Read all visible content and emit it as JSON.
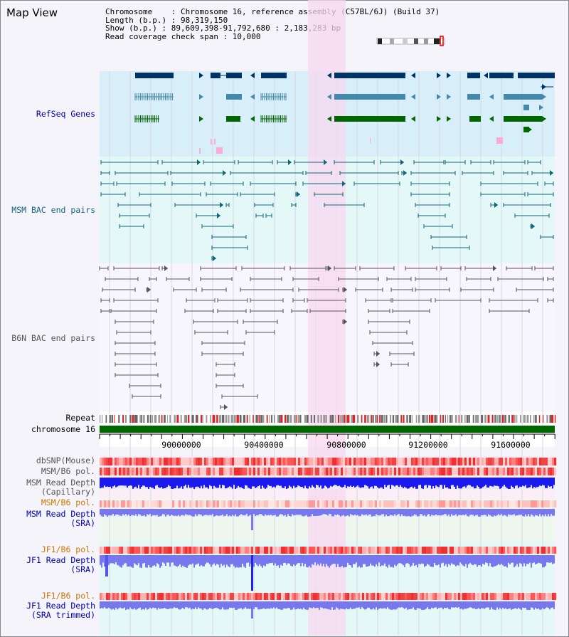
{
  "title": "Map View",
  "header": {
    "chromosome": "Chromosome    : Chromosome 16, reference assembly (C57BL/6J) (Build 37)",
    "length": "Length (b.p.) : 98,319,150",
    "show": "Show (b.p.) : 89,609,398-91,792,680 : 2,183,283 bp",
    "coverage": "Read coverage check span : 10,000"
  },
  "tracks": {
    "refseq": "RefSeq Genes",
    "msm_bac": "MSM BAC end pairs",
    "b6n_bac": "B6N BAC end pairs",
    "repeat": "Repeat",
    "chrom": "chromosome 16",
    "dbsnp": "dbSNP(Mouse)",
    "msm_b6_pol": "MSM/B6 pol.",
    "msm_depth_cap_1": "MSM Read Depth",
    "msm_depth_cap_2": "(Capillary)",
    "msm_b6_pol_sra": "MSM/B6 pol.",
    "msm_depth_sra_1": "MSM Read Depth",
    "msm_depth_sra_2": "(SRA)",
    "jf1_b6_pol": "JF1/B6 pol.",
    "jf1_depth_sra_1": "JF1 Read Depth",
    "jf1_depth_sra_2": "(SRA)",
    "jf1_b6_pol_trim": "JF1/B6 pol.",
    "jf1_depth_trim_1": "JF1 Read Depth",
    "jf1_depth_trim_2": "(SRA trimmed)"
  },
  "axis_ticks": [
    "90000000",
    "90400000",
    "90800000",
    "91200000",
    "91600000"
  ],
  "colors": {
    "refseq_bg": "#d8eef8",
    "bac_bg": "#e4f8f8",
    "highlight": "#f8d8f0",
    "gene_dark": "#003366",
    "gene_mid": "#4488aa",
    "gene_green": "#006600",
    "msm_line": "#11667a",
    "b6n_line": "#555555",
    "chrom_green": "#006600",
    "label_blue": "#0000aa",
    "label_orange": "#cc7700",
    "depth_blue": "#2222ee",
    "depth_light": "#7777ee"
  }
}
